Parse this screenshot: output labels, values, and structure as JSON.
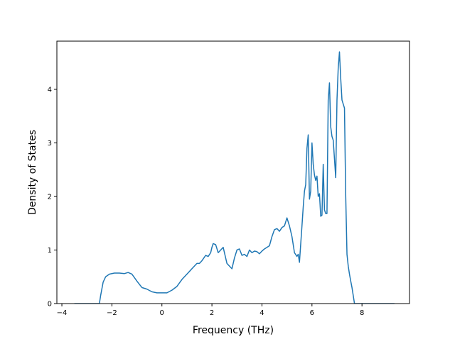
{
  "chart_data": {
    "type": "line",
    "title": "",
    "xlabel": "Frequency (THz)",
    "ylabel": "Density of States",
    "xlim": [
      -4.2,
      9.9
    ],
    "ylim": [
      0,
      4.9
    ],
    "x_ticks": [
      -4,
      -2,
      0,
      2,
      4,
      6,
      8
    ],
    "x_tick_labels": [
      "−4",
      "−2",
      "0",
      "2",
      "4",
      "6",
      "8"
    ],
    "y_ticks": [
      0,
      1,
      2,
      3,
      4
    ],
    "y_tick_labels": [
      "0",
      "1",
      "2",
      "3",
      "4"
    ],
    "grid": false,
    "legend": "none",
    "colors": {
      "line": "#1f77b4",
      "axes": "#000000",
      "background": "#ffffff"
    },
    "series": [
      {
        "x": [
          -3.5,
          -2.5,
          -2.45,
          -2.35,
          -2.25,
          -2.1,
          -1.9,
          -1.7,
          -1.5,
          -1.35,
          -1.2,
          -1.0,
          -0.8,
          -0.6,
          -0.4,
          -0.2,
          0.0,
          0.2,
          0.4,
          0.6,
          0.8,
          1.0,
          1.2,
          1.4,
          1.5,
          1.6,
          1.75,
          1.85,
          1.95,
          2.0,
          2.05,
          2.15,
          2.25,
          2.35,
          2.45,
          2.6,
          2.7,
          2.8,
          2.9,
          3.0,
          3.1,
          3.2,
          3.3,
          3.4,
          3.5,
          3.6,
          3.7,
          3.8,
          3.9,
          4.0,
          4.1,
          4.2,
          4.3,
          4.4,
          4.5,
          4.6,
          4.7,
          4.8,
          4.9,
          5.0,
          5.1,
          5.2,
          5.3,
          5.4,
          5.45,
          5.5,
          5.6,
          5.65,
          5.7,
          5.75,
          5.8,
          5.85,
          5.9,
          5.95,
          6.0,
          6.05,
          6.1,
          6.15,
          6.2,
          6.25,
          6.3,
          6.35,
          6.4,
          6.45,
          6.5,
          6.55,
          6.6,
          6.65,
          6.7,
          6.75,
          6.8,
          6.85,
          6.9,
          6.95,
          7.0,
          7.05,
          7.1,
          7.15,
          7.2,
          7.3,
          7.35,
          7.4,
          7.45,
          7.5,
          7.55,
          7.6,
          7.65,
          7.7,
          7.75,
          7.8,
          7.85,
          7.9,
          8.0,
          8.1,
          8.2,
          8.3,
          8.5,
          9.3
        ],
        "y": [
          0.0,
          0.0,
          0.15,
          0.4,
          0.5,
          0.55,
          0.57,
          0.57,
          0.56,
          0.58,
          0.55,
          0.42,
          0.3,
          0.27,
          0.22,
          0.2,
          0.2,
          0.2,
          0.25,
          0.32,
          0.45,
          0.55,
          0.65,
          0.75,
          0.75,
          0.8,
          0.9,
          0.88,
          0.95,
          1.05,
          1.12,
          1.1,
          0.95,
          1.0,
          1.05,
          0.75,
          0.7,
          0.65,
          0.85,
          1.0,
          1.02,
          0.9,
          0.92,
          0.88,
          1.0,
          0.95,
          0.98,
          0.97,
          0.93,
          0.98,
          1.02,
          1.05,
          1.08,
          1.25,
          1.38,
          1.4,
          1.35,
          1.42,
          1.45,
          1.6,
          1.45,
          1.25,
          0.95,
          0.88,
          0.92,
          0.77,
          1.45,
          1.8,
          2.1,
          2.22,
          2.9,
          3.15,
          1.95,
          2.1,
          3.0,
          2.6,
          2.4,
          2.3,
          2.38,
          2.0,
          2.05,
          1.63,
          1.65,
          2.6,
          1.75,
          1.68,
          1.68,
          3.8,
          4.12,
          3.3,
          3.12,
          3.05,
          2.7,
          2.35,
          3.8,
          4.4,
          4.7,
          4.2,
          3.8,
          3.65,
          2.0,
          0.92,
          0.7,
          0.55,
          0.42,
          0.3,
          0.15,
          0.0,
          0.0,
          0.0,
          0.0,
          0.0,
          0.0,
          0.0,
          0.0,
          0.0,
          0.0,
          0.0
        ]
      }
    ]
  }
}
